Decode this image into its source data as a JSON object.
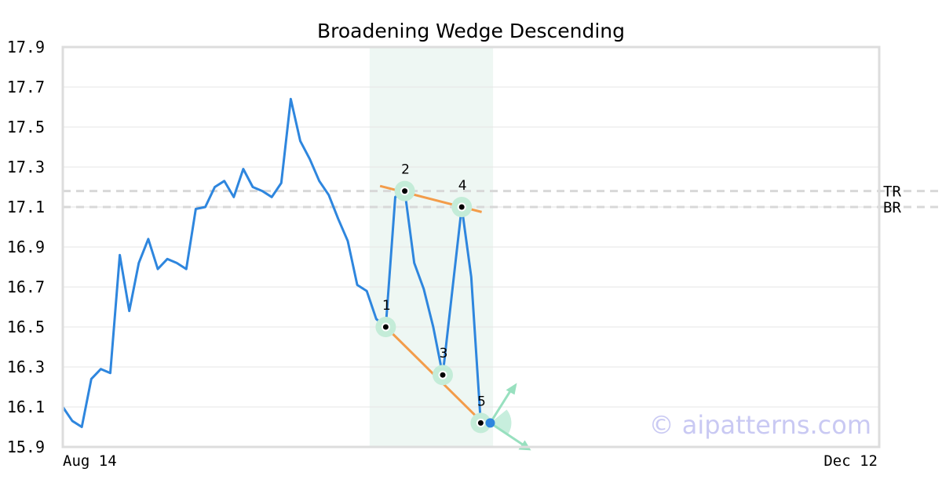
{
  "chart_data": {
    "type": "line",
    "title": "Broadening Wedge Descending",
    "xlabel": "",
    "ylabel": "",
    "ylim": [
      15.9,
      17.9
    ],
    "yticks": [
      "15.9",
      "16.1",
      "16.3",
      "16.5",
      "16.7",
      "16.9",
      "17.1",
      "17.3",
      "17.5",
      "17.7",
      "17.9"
    ],
    "x_tick_labels": [
      "Aug 14",
      "Dec 12"
    ],
    "grid": true,
    "series": [
      {
        "color": "#2e86de",
        "values": [
          16.1,
          16.03,
          16.0,
          16.24,
          16.29,
          16.27,
          16.86,
          16.58,
          16.82,
          16.94,
          16.79,
          16.84,
          16.82,
          16.79,
          17.09,
          17.1,
          17.2,
          17.23,
          17.15,
          17.29,
          17.2,
          17.18,
          17.15,
          17.22,
          17.64,
          17.43,
          17.34,
          17.23,
          17.16,
          17.04,
          16.93,
          16.71,
          16.68,
          16.54,
          16.5,
          17.15,
          17.18,
          16.82,
          16.69,
          16.5,
          16.26,
          16.68,
          17.1,
          16.75,
          16.02,
          16.02
        ]
      }
    ],
    "pattern_points": [
      {
        "label": "1",
        "index": 34,
        "value": 16.5
      },
      {
        "label": "2",
        "index": 36,
        "value": 17.18
      },
      {
        "label": "3",
        "index": 40,
        "value": 16.26
      },
      {
        "label": "4",
        "index": 42,
        "value": 17.1
      },
      {
        "label": "5",
        "index": 44,
        "value": 16.02
      }
    ],
    "trendlines": [
      {
        "name": "upper",
        "color": "#f39c4a",
        "from": {
          "index": 33.4,
          "value": 17.205
        },
        "to": {
          "index": 44.1,
          "value": 17.075
        }
      },
      {
        "name": "lower",
        "color": "#f39c4a",
        "from": {
          "index": 34,
          "value": 16.5
        },
        "to": {
          "index": 43.8,
          "value": 16.04
        }
      }
    ],
    "levels": [
      {
        "label": "TR",
        "value": 17.18
      },
      {
        "label": "BR",
        "value": 17.1
      }
    ],
    "highlight_range": {
      "from_index": 32.3,
      "to_index": 45.3,
      "color": "#eef7f3"
    },
    "breakout_point": {
      "index": 45,
      "value": 16.02,
      "color": "#2e86de"
    },
    "direction_arrows": [
      "up-right",
      "down-right"
    ],
    "x_domain": [
      0,
      86
    ]
  },
  "watermark": "© aipatterns.com"
}
